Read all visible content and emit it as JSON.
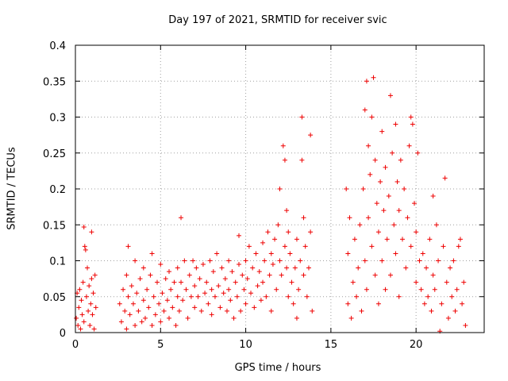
{
  "chart_data": {
    "type": "scatter",
    "title": "Day 197 of 2021, SRMTID for receiver svic",
    "xlabel": "GPS time / hours",
    "ylabel": "SRMTID / TECUs",
    "xlim": [
      0,
      24
    ],
    "ylim": [
      0,
      0.4
    ],
    "x_ticks": [
      0,
      5,
      10,
      15,
      20
    ],
    "y_ticks": [
      0,
      0.05,
      0.1,
      0.15,
      0.2,
      0.25,
      0.3,
      0.35,
      0.4
    ],
    "y_tick_labels": [
      "0",
      "0.05",
      "0.1",
      "0.15",
      "0.2",
      "0.25",
      "0.3",
      "0.35",
      "0.4"
    ],
    "grid": true,
    "marker": "+",
    "color": "#ee0000",
    "series": [
      {
        "points": [
          [
            0.05,
            0.02
          ],
          [
            0.1,
            0.055
          ],
          [
            0.15,
            0.01
          ],
          [
            0.2,
            0.035
          ],
          [
            0.25,
            0.06
          ],
          [
            0.3,
            0.005
          ],
          [
            0.35,
            0.045
          ],
          [
            0.4,
            0.025
          ],
          [
            0.45,
            0.07
          ],
          [
            0.5,
            0.015
          ],
          [
            0.5,
            0.147
          ],
          [
            0.55,
            0.12
          ],
          [
            0.6,
            0.115
          ],
          [
            0.65,
            0.05
          ],
          [
            0.7,
            0.09
          ],
          [
            0.75,
            0.03
          ],
          [
            0.8,
            0.065
          ],
          [
            0.85,
            0.01
          ],
          [
            0.9,
            0.04
          ],
          [
            0.95,
            0.14
          ],
          [
            0.95,
            0.075
          ],
          [
            1.0,
            0.025
          ],
          [
            1.05,
            0.055
          ],
          [
            1.1,
            0.005
          ],
          [
            1.15,
            0.08
          ],
          [
            1.2,
            0.035
          ],
          [
            2.6,
            0.04
          ],
          [
            2.7,
            0.015
          ],
          [
            2.8,
            0.06
          ],
          [
            2.9,
            0.03
          ],
          [
            3.0,
            0.08
          ],
          [
            3.0,
            0.005
          ],
          [
            3.1,
            0.05
          ],
          [
            3.1,
            0.12
          ],
          [
            3.2,
            0.025
          ],
          [
            3.3,
            0.065
          ],
          [
            3.4,
            0.04
          ],
          [
            3.5,
            0.01
          ],
          [
            3.5,
            0.1
          ],
          [
            3.6,
            0.055
          ],
          [
            3.7,
            0.03
          ],
          [
            3.8,
            0.075
          ],
          [
            3.9,
            0.015
          ],
          [
            4.0,
            0.045
          ],
          [
            4.0,
            0.09
          ],
          [
            4.1,
            0.02
          ],
          [
            4.2,
            0.06
          ],
          [
            4.3,
            0.035
          ],
          [
            4.4,
            0.08
          ],
          [
            4.5,
            0.01
          ],
          [
            4.5,
            0.11
          ],
          [
            4.6,
            0.05
          ],
          [
            4.7,
            0.025
          ],
          [
            4.8,
            0.07
          ],
          [
            4.9,
            0.04
          ],
          [
            5.0,
            0.015
          ],
          [
            5.0,
            0.095
          ],
          [
            5.1,
            0.055
          ],
          [
            5.2,
            0.03
          ],
          [
            5.3,
            0.075
          ],
          [
            5.4,
            0.045
          ],
          [
            5.5,
            0.02
          ],
          [
            5.5,
            0.085
          ],
          [
            5.6,
            0.06
          ],
          [
            5.7,
            0.035
          ],
          [
            5.8,
            0.07
          ],
          [
            5.9,
            0.01
          ],
          [
            6.0,
            0.05
          ],
          [
            6.0,
            0.09
          ],
          [
            6.1,
            0.03
          ],
          [
            6.2,
            0.07
          ],
          [
            6.2,
            0.16
          ],
          [
            6.3,
            0.045
          ],
          [
            6.4,
            0.1
          ],
          [
            6.5,
            0.06
          ],
          [
            6.6,
            0.02
          ],
          [
            6.7,
            0.08
          ],
          [
            6.8,
            0.05
          ],
          [
            6.9,
            0.1
          ],
          [
            7.0,
            0.035
          ],
          [
            7.0,
            0.065
          ],
          [
            7.1,
            0.09
          ],
          [
            7.2,
            0.05
          ],
          [
            7.3,
            0.075
          ],
          [
            7.4,
            0.03
          ],
          [
            7.5,
            0.095
          ],
          [
            7.6,
            0.055
          ],
          [
            7.7,
            0.07
          ],
          [
            7.8,
            0.04
          ],
          [
            7.9,
            0.1
          ],
          [
            8.0,
            0.06
          ],
          [
            8.0,
            0.025
          ],
          [
            8.1,
            0.085
          ],
          [
            8.2,
            0.05
          ],
          [
            8.3,
            0.11
          ],
          [
            8.4,
            0.065
          ],
          [
            8.5,
            0.035
          ],
          [
            8.6,
            0.09
          ],
          [
            8.7,
            0.055
          ],
          [
            8.8,
            0.075
          ],
          [
            8.9,
            0.03
          ],
          [
            9.0,
            0.1
          ],
          [
            9.0,
            0.06
          ],
          [
            9.1,
            0.045
          ],
          [
            9.2,
            0.085
          ],
          [
            9.3,
            0.02
          ],
          [
            9.4,
            0.07
          ],
          [
            9.5,
            0.05
          ],
          [
            9.6,
            0.095
          ],
          [
            9.6,
            0.135
          ],
          [
            9.7,
            0.03
          ],
          [
            9.8,
            0.08
          ],
          [
            9.9,
            0.06
          ],
          [
            10.0,
            0.1
          ],
          [
            10.0,
            0.04
          ],
          [
            10.1,
            0.075
          ],
          [
            10.2,
            0.12
          ],
          [
            10.3,
            0.055
          ],
          [
            10.4,
            0.09
          ],
          [
            10.5,
            0.035
          ],
          [
            10.6,
            0.11
          ],
          [
            10.7,
            0.065
          ],
          [
            10.8,
            0.085
          ],
          [
            10.9,
            0.045
          ],
          [
            11.0,
            0.125
          ],
          [
            11.0,
            0.07
          ],
          [
            11.1,
            0.1
          ],
          [
            11.2,
            0.05
          ],
          [
            11.3,
            0.14
          ],
          [
            11.4,
            0.08
          ],
          [
            11.5,
            0.11
          ],
          [
            11.5,
            0.03
          ],
          [
            11.6,
            0.095
          ],
          [
            11.7,
            0.13
          ],
          [
            11.8,
            0.06
          ],
          [
            11.9,
            0.15
          ],
          [
            12.0,
            0.1
          ],
          [
            12.0,
            0.2
          ],
          [
            12.1,
            0.08
          ],
          [
            12.2,
            0.26
          ],
          [
            12.3,
            0.12
          ],
          [
            12.3,
            0.24
          ],
          [
            12.4,
            0.17
          ],
          [
            12.4,
            0.09
          ],
          [
            12.5,
            0.14
          ],
          [
            12.5,
            0.05
          ],
          [
            12.6,
            0.11
          ],
          [
            12.7,
            0.07
          ],
          [
            12.8,
            0.04
          ],
          [
            12.9,
            0.09
          ],
          [
            13.0,
            0.13
          ],
          [
            13.0,
            0.02
          ],
          [
            13.1,
            0.06
          ],
          [
            13.2,
            0.1
          ],
          [
            13.3,
            0.3
          ],
          [
            13.3,
            0.24
          ],
          [
            13.4,
            0.16
          ],
          [
            13.4,
            0.08
          ],
          [
            13.5,
            0.12
          ],
          [
            13.6,
            0.05
          ],
          [
            13.7,
            0.09
          ],
          [
            13.8,
            0.275
          ],
          [
            13.8,
            0.14
          ],
          [
            13.9,
            0.03
          ],
          [
            15.9,
            0.2
          ],
          [
            16.0,
            0.04
          ],
          [
            16.0,
            0.11
          ],
          [
            16.1,
            0.16
          ],
          [
            16.2,
            0.02
          ],
          [
            16.3,
            0.07
          ],
          [
            16.4,
            0.13
          ],
          [
            16.5,
            0.05
          ],
          [
            16.6,
            0.09
          ],
          [
            16.7,
            0.15
          ],
          [
            16.8,
            0.03
          ],
          [
            16.9,
            0.2
          ],
          [
            17.0,
            0.1
          ],
          [
            17.0,
            0.31
          ],
          [
            17.1,
            0.35
          ],
          [
            17.1,
            0.06
          ],
          [
            17.2,
            0.26
          ],
          [
            17.2,
            0.16
          ],
          [
            17.3,
            0.22
          ],
          [
            17.4,
            0.12
          ],
          [
            17.4,
            0.3
          ],
          [
            17.5,
            0.355
          ],
          [
            17.6,
            0.08
          ],
          [
            17.6,
            0.24
          ],
          [
            17.7,
            0.18
          ],
          [
            17.8,
            0.04
          ],
          [
            17.8,
            0.14
          ],
          [
            17.9,
            0.21
          ],
          [
            18.0,
            0.1
          ],
          [
            18.0,
            0.28
          ],
          [
            18.1,
            0.17
          ],
          [
            18.2,
            0.06
          ],
          [
            18.2,
            0.23
          ],
          [
            18.3,
            0.13
          ],
          [
            18.4,
            0.19
          ],
          [
            18.5,
            0.33
          ],
          [
            18.5,
            0.08
          ],
          [
            18.6,
            0.25
          ],
          [
            18.7,
            0.15
          ],
          [
            18.8,
            0.29
          ],
          [
            18.8,
            0.11
          ],
          [
            18.9,
            0.21
          ],
          [
            19.0,
            0.05
          ],
          [
            19.0,
            0.17
          ],
          [
            19.1,
            0.24
          ],
          [
            19.2,
            0.13
          ],
          [
            19.3,
            0.2
          ],
          [
            19.4,
            0.09
          ],
          [
            19.5,
            0.16
          ],
          [
            19.6,
            0.26
          ],
          [
            19.7,
            0.3
          ],
          [
            19.7,
            0.12
          ],
          [
            19.8,
            0.29
          ],
          [
            19.9,
            0.18
          ],
          [
            20.0,
            0.07
          ],
          [
            20.0,
            0.14
          ],
          [
            20.1,
            0.25
          ],
          [
            20.2,
            0.1
          ],
          [
            20.3,
            0.06
          ],
          [
            20.4,
            0.11
          ],
          [
            20.5,
            0.04
          ],
          [
            20.6,
            0.09
          ],
          [
            20.7,
            0.05
          ],
          [
            20.8,
            0.13
          ],
          [
            20.9,
            0.03
          ],
          [
            21.0,
            0.08
          ],
          [
            21.0,
            0.19
          ],
          [
            21.1,
            0.06
          ],
          [
            21.2,
            0.15
          ],
          [
            21.3,
            0.1
          ],
          [
            21.4,
            0.002
          ],
          [
            21.5,
            0.04
          ],
          [
            21.6,
            0.12
          ],
          [
            21.7,
            0.215
          ],
          [
            21.8,
            0.07
          ],
          [
            21.9,
            0.02
          ],
          [
            22.0,
            0.09
          ],
          [
            22.1,
            0.05
          ],
          [
            22.2,
            0.1
          ],
          [
            22.3,
            0.03
          ],
          [
            22.4,
            0.06
          ],
          [
            22.5,
            0.12
          ],
          [
            22.6,
            0.13
          ],
          [
            22.7,
            0.04
          ],
          [
            22.8,
            0.07
          ],
          [
            22.9,
            0.01
          ]
        ]
      }
    ]
  }
}
